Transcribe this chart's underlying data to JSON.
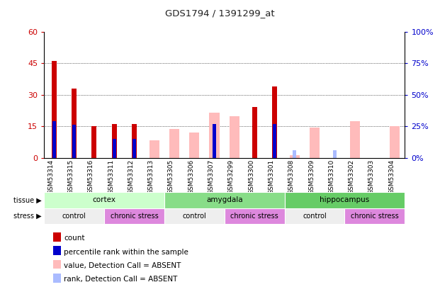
{
  "title": "GDS1794 / 1391299_at",
  "samples": [
    "GSM53314",
    "GSM53315",
    "GSM53316",
    "GSM53311",
    "GSM53312",
    "GSM53313",
    "GSM53305",
    "GSM53306",
    "GSM53307",
    "GSM53299",
    "GSM53300",
    "GSM53301",
    "GSM53308",
    "GSM53309",
    "GSM53310",
    "GSM53302",
    "GSM53303",
    "GSM53304"
  ],
  "count_values": [
    46,
    33,
    15,
    16,
    16,
    null,
    null,
    null,
    null,
    null,
    24,
    34,
    null,
    null,
    null,
    null,
    null,
    null
  ],
  "percentile_values": [
    29,
    26,
    null,
    15,
    15,
    null,
    null,
    null,
    27,
    null,
    null,
    27,
    null,
    null,
    null,
    null,
    null,
    null
  ],
  "absent_value_values": [
    null,
    null,
    null,
    null,
    null,
    14,
    23,
    20,
    36,
    33,
    null,
    null,
    2,
    24,
    null,
    29,
    null,
    25
  ],
  "absent_rank_values": [
    null,
    null,
    null,
    null,
    null,
    null,
    null,
    null,
    null,
    null,
    null,
    null,
    6,
    null,
    6,
    null,
    null,
    null
  ],
  "tissues": [
    {
      "label": "cortex",
      "start": 0,
      "end": 6,
      "color": "#ccffcc"
    },
    {
      "label": "amygdala",
      "start": 6,
      "end": 12,
      "color": "#88dd88"
    },
    {
      "label": "hippocampus",
      "start": 12,
      "end": 18,
      "color": "#66cc66"
    }
  ],
  "stresses": [
    {
      "label": "control",
      "start": 0,
      "end": 3,
      "color": "#eeeeee"
    },
    {
      "label": "chronic stress",
      "start": 3,
      "end": 6,
      "color": "#dd88dd"
    },
    {
      "label": "control",
      "start": 6,
      "end": 9,
      "color": "#eeeeee"
    },
    {
      "label": "chronic stress",
      "start": 9,
      "end": 12,
      "color": "#dd88dd"
    },
    {
      "label": "control",
      "start": 12,
      "end": 15,
      "color": "#eeeeee"
    },
    {
      "label": "chronic stress",
      "start": 15,
      "end": 18,
      "color": "#dd88dd"
    }
  ],
  "ylim_left": [
    0,
    60
  ],
  "ylim_right": [
    0,
    100
  ],
  "yticks_left": [
    0,
    15,
    30,
    45,
    60
  ],
  "yticks_right": [
    0,
    25,
    50,
    75,
    100
  ],
  "count_color": "#cc0000",
  "percentile_color": "#0000cc",
  "absent_value_color": "#ffbbbb",
  "absent_rank_color": "#aabbff",
  "background_color": "#ffffff",
  "tick_color_left": "#cc0000",
  "tick_color_right": "#0000cc",
  "legend_items": [
    {
      "color": "#cc0000",
      "label": "count"
    },
    {
      "color": "#0000cc",
      "label": "percentile rank within the sample"
    },
    {
      "color": "#ffbbbb",
      "label": "value, Detection Call = ABSENT"
    },
    {
      "color": "#aabbff",
      "label": "rank, Detection Call = ABSENT"
    }
  ]
}
